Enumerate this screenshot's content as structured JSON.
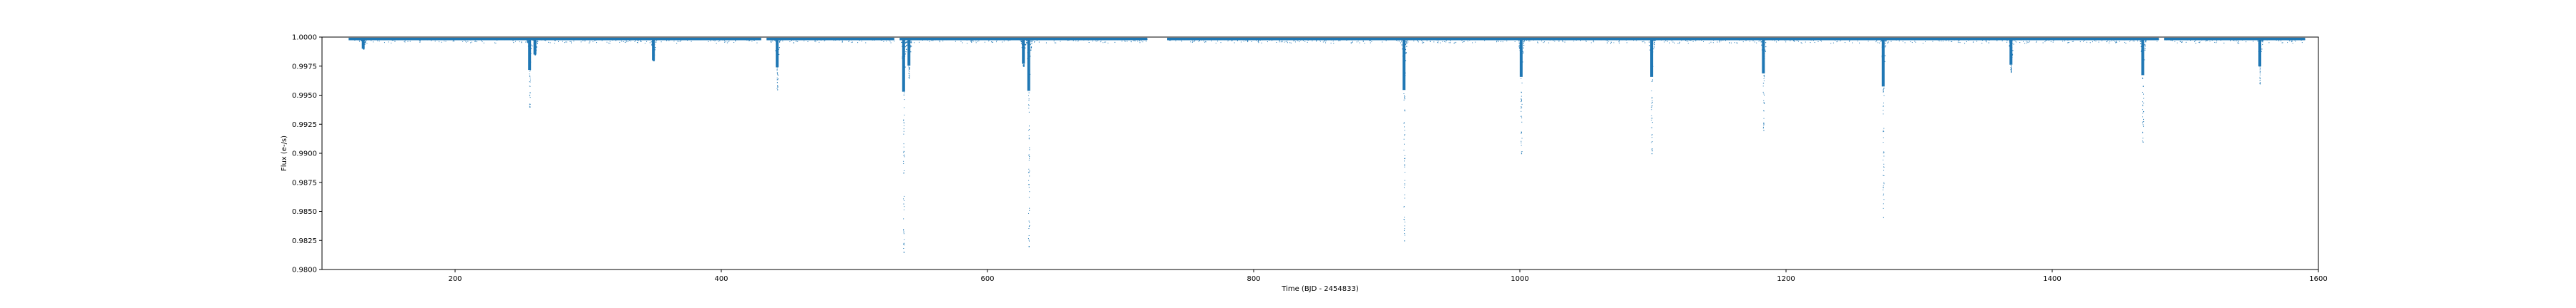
{
  "chart_data": {
    "type": "scatter",
    "title": "",
    "xlabel": "Time (BJD - 2454833)",
    "ylabel": "Flux (e-/s)",
    "xlim": [
      100,
      1600
    ],
    "ylim": [
      0.98,
      1.0
    ],
    "grid": false,
    "legend": "none",
    "point_color": "#1f77b4",
    "x_ticks": [
      200,
      400,
      600,
      800,
      1000,
      1200,
      1400,
      1600
    ],
    "y_ticks": [
      0.98,
      0.9825,
      0.985,
      0.9875,
      0.99,
      0.9925,
      0.995,
      0.9975,
      1.0
    ],
    "x_tick_labels": [
      "200",
      "400",
      "600",
      "800",
      "1000",
      "1200",
      "1400",
      "1600"
    ],
    "y_tick_labels": [
      "0.9800",
      "0.9825",
      "0.9850",
      "0.9875",
      "0.9900",
      "0.9925",
      "0.9950",
      "0.9975",
      "1.0000"
    ],
    "baseline_flux": 0.99985,
    "baseline_segments": [
      [
        120,
        430
      ],
      [
        434,
        530
      ],
      [
        534,
        720
      ],
      [
        735,
        1480
      ],
      [
        1484,
        1590
      ]
    ],
    "dips": [
      {
        "t": 131,
        "depth": 0.999
      },
      {
        "t": 256,
        "depth": 0.994
      },
      {
        "t": 260,
        "depth": 0.9985
      },
      {
        "t": 349,
        "depth": 0.998
      },
      {
        "t": 442,
        "depth": 0.9955
      },
      {
        "t": 537,
        "depth": 0.9815
      },
      {
        "t": 541,
        "depth": 0.9965
      },
      {
        "t": 627,
        "depth": 0.9975
      },
      {
        "t": 631,
        "depth": 0.982
      },
      {
        "t": 913,
        "depth": 0.9825
      },
      {
        "t": 1001,
        "depth": 0.99
      },
      {
        "t": 1099,
        "depth": 0.99
      },
      {
        "t": 1183,
        "depth": 0.992
      },
      {
        "t": 1273,
        "depth": 0.9845
      },
      {
        "t": 1369,
        "depth": 0.997
      },
      {
        "t": 1468,
        "depth": 0.991
      },
      {
        "t": 1556,
        "depth": 0.996
      }
    ]
  }
}
